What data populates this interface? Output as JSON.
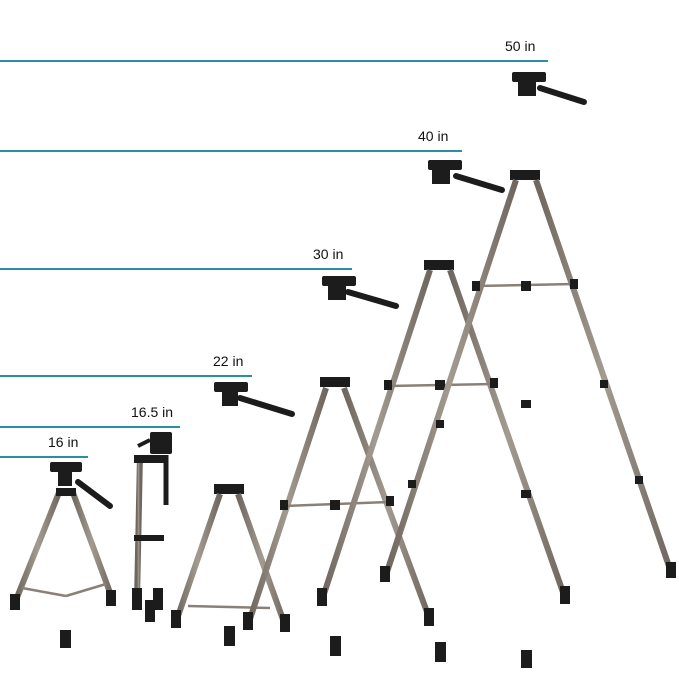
{
  "colors": {
    "guide_line": "#2a8fa0",
    "tripod_leg": "#8a8078",
    "tripod_dark": "#1c1c1c",
    "background": "#ffffff"
  },
  "heights": [
    {
      "label": "50 in"
    },
    {
      "label": "40 in"
    },
    {
      "label": "30 in"
    },
    {
      "label": "22 in"
    },
    {
      "label": "16.5 in"
    },
    {
      "label": "16 in"
    }
  ]
}
